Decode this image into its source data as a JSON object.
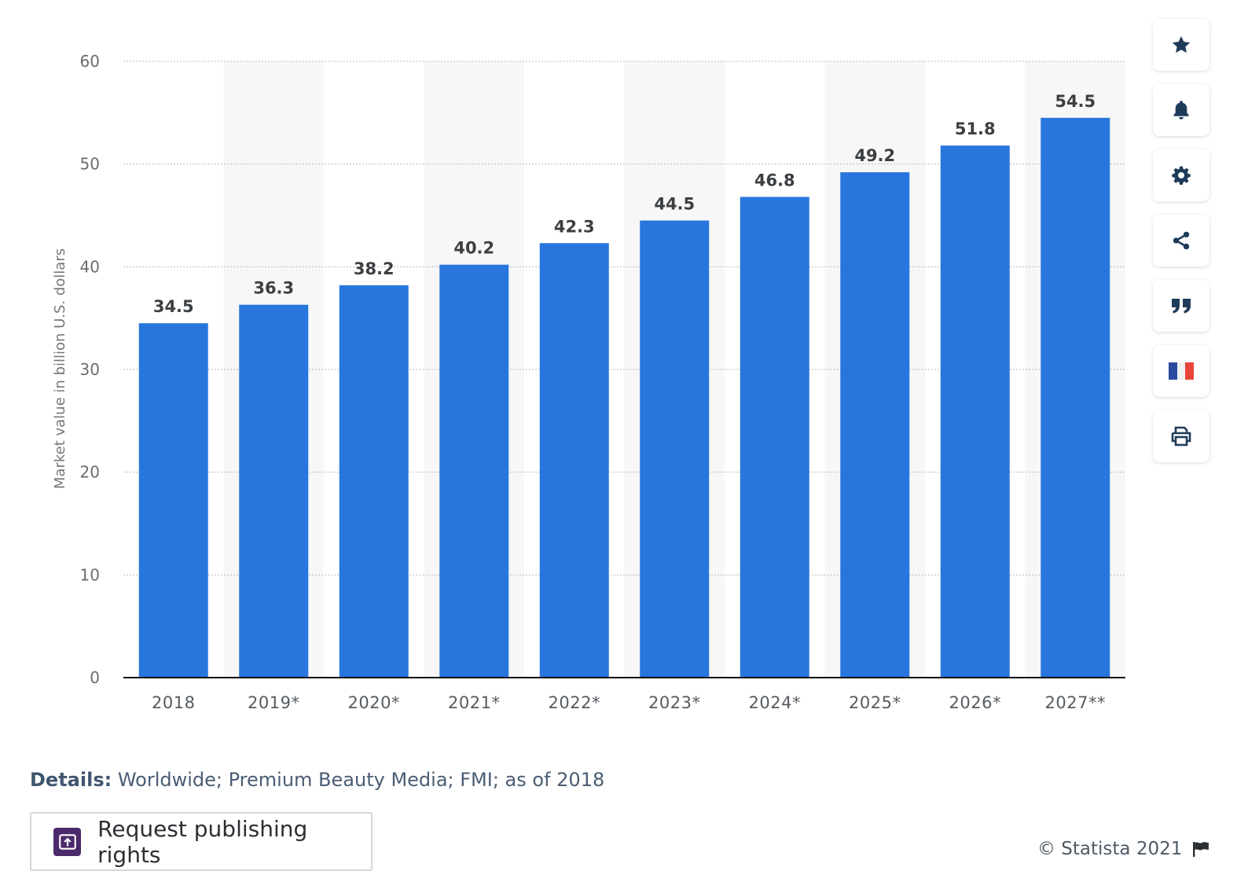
{
  "chart_data": {
    "type": "bar",
    "categories": [
      "2018",
      "2019*",
      "2020*",
      "2021*",
      "2022*",
      "2023*",
      "2024*",
      "2025*",
      "2026*",
      "2027**"
    ],
    "values": [
      34.5,
      36.3,
      38.2,
      40.2,
      42.3,
      44.5,
      46.8,
      49.2,
      51.8,
      54.5
    ],
    "value_labels": [
      "34.5",
      "36.3",
      "38.2",
      "40.2",
      "42.3",
      "44.5",
      "46.8",
      "49.2",
      "51.8",
      "54.5"
    ],
    "ylabel": "Market value in billion U.S. dollars",
    "xlabel": "",
    "ylim": [
      0,
      60
    ],
    "yticks": [
      "0",
      "10",
      "20",
      "30",
      "40",
      "50",
      "60"
    ],
    "grid": true,
    "bar_color": "#2876dd",
    "alternate_band_color": "#f7f7f7"
  },
  "toolbar": {
    "buttons": [
      {
        "name": "favorite",
        "icon": "star-icon"
      },
      {
        "name": "notification",
        "icon": "bell-icon"
      },
      {
        "name": "settings",
        "icon": "gear-icon"
      },
      {
        "name": "share",
        "icon": "share-icon"
      },
      {
        "name": "cite",
        "icon": "quote-icon"
      },
      {
        "name": "language",
        "icon": "french-flag-icon"
      },
      {
        "name": "print",
        "icon": "printer-icon"
      }
    ]
  },
  "details": {
    "label": "Details:",
    "text": "Worldwide; Premium Beauty Media; FMI; as of 2018"
  },
  "publishing": {
    "label": "Request publishing rights"
  },
  "footer": {
    "copyright": "© Statista 2021"
  }
}
